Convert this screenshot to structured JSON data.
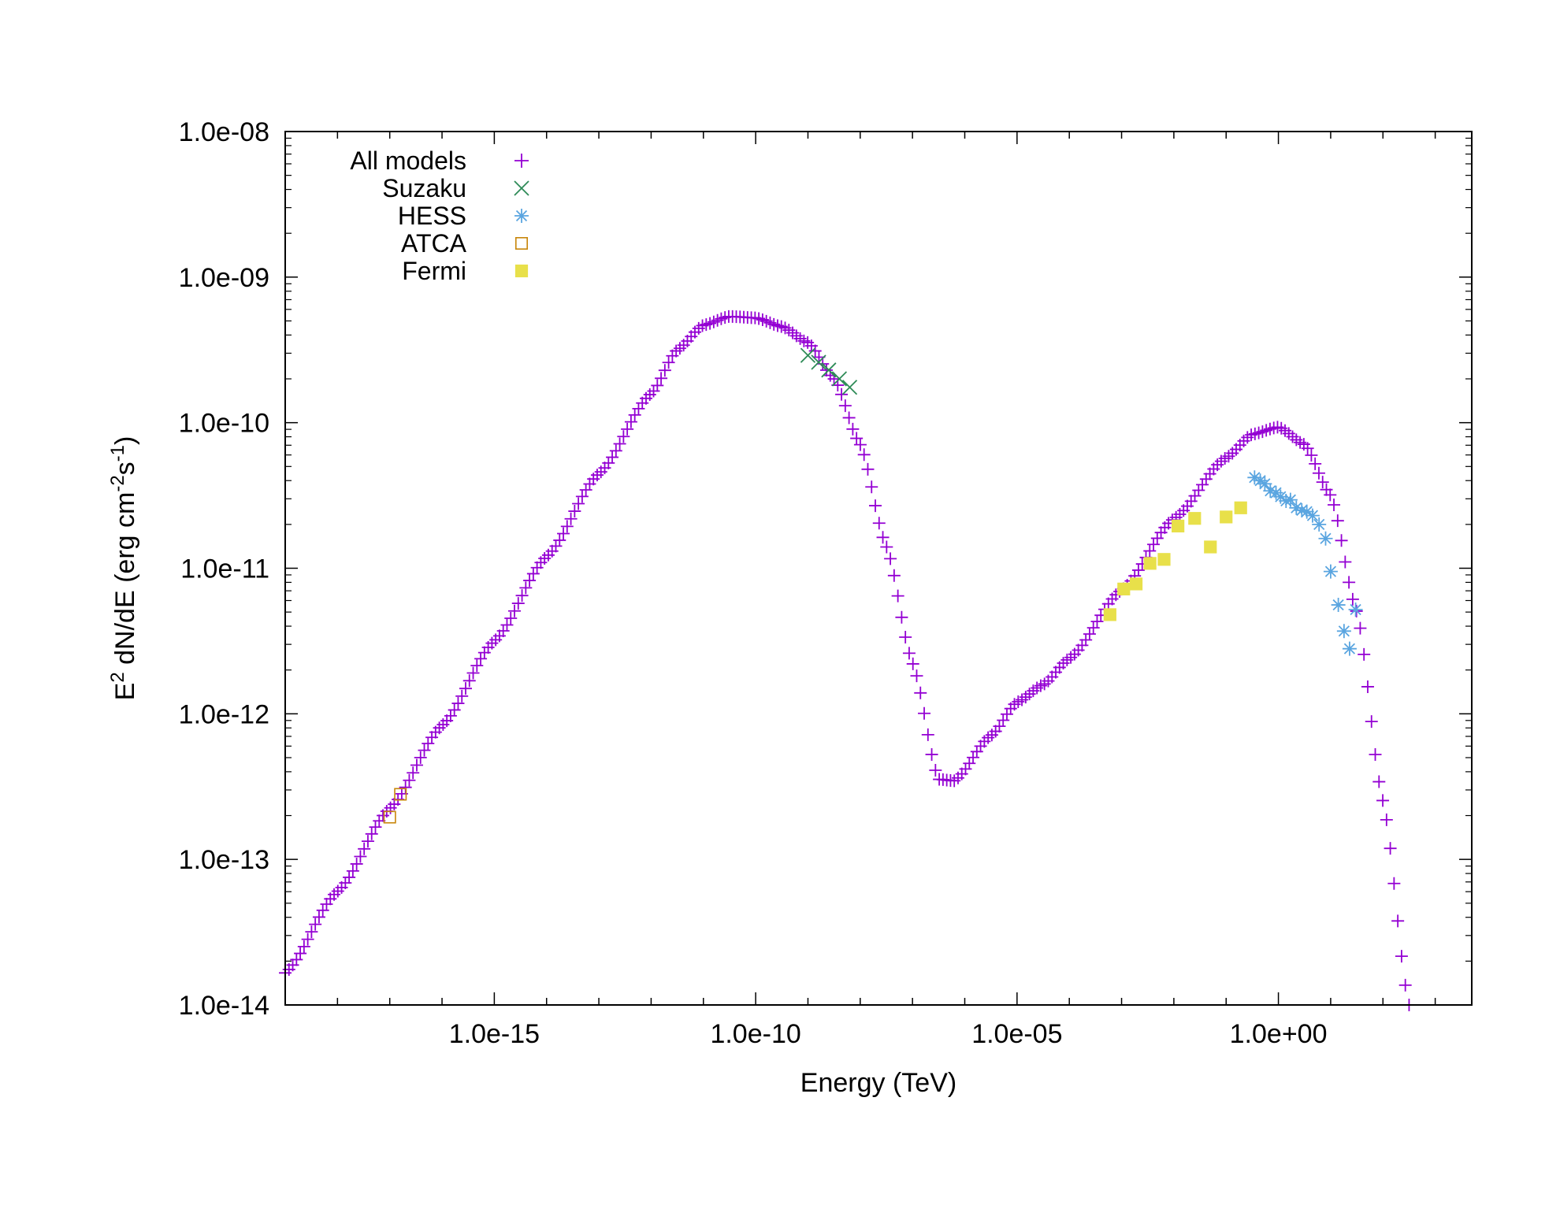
{
  "chart_data": {
    "type": "scatter",
    "title": "",
    "xlabel": "Energy (TeV)",
    "ylabel": {
      "text": "E",
      "sup1": "2",
      "mid1": " dN/dE (erg cm",
      "sup2": "-2",
      "mid2": "s",
      "sup3": "-1",
      "end": ")"
    },
    "xscale": "log",
    "yscale": "log",
    "xlim": [
      1e-19,
      5000.0
    ],
    "ylim": [
      1e-14,
      1e-08
    ],
    "x_ticks": [
      {
        "value": 1e-15,
        "label": "1.0e-15"
      },
      {
        "value": 1e-10,
        "label": "1.0e-10"
      },
      {
        "value": 1e-05,
        "label": "1.0e-05"
      },
      {
        "value": 1,
        "label": "1.0e+00"
      }
    ],
    "y_ticks": [
      {
        "value": 1e-08,
        "label": "1.0e-08"
      },
      {
        "value": 1e-09,
        "label": "1.0e-09"
      },
      {
        "value": 1e-10,
        "label": "1.0e-10"
      },
      {
        "value": 1e-11,
        "label": "1.0e-11"
      },
      {
        "value": 1e-12,
        "label": "1.0e-12"
      },
      {
        "value": 1e-13,
        "label": "1.0e-13"
      },
      {
        "value": 1e-14,
        "label": "1.0e-14"
      }
    ],
    "grid": false,
    "legend_position": "top-left",
    "series": [
      {
        "name": "All models",
        "marker": "plus",
        "color": "#9400d3",
        "curve_knots": [
          [
            -19.0,
            -13.78
          ],
          [
            -18.0,
            -13.22
          ],
          [
            -17.0,
            -12.65
          ],
          [
            -16.0,
            -12.08
          ],
          [
            -15.0,
            -11.5
          ],
          [
            -14.0,
            -10.92
          ],
          [
            -13.0,
            -10.35
          ],
          [
            -12.0,
            -9.8
          ],
          [
            -11.5,
            -9.5
          ],
          [
            -11.0,
            -9.33
          ],
          [
            -10.5,
            -9.27
          ],
          [
            -10.0,
            -9.28
          ],
          [
            -9.5,
            -9.34
          ],
          [
            -9.0,
            -9.45
          ],
          [
            -8.5,
            -9.7
          ],
          [
            -8.0,
            -10.15
          ],
          [
            -7.5,
            -10.85
          ],
          [
            -7.0,
            -11.65
          ],
          [
            -6.5,
            -12.45
          ],
          [
            -6.2,
            -12.46
          ],
          [
            -5.5,
            -12.15
          ],
          [
            -5.0,
            -11.92
          ],
          [
            -4.5,
            -11.8
          ],
          [
            -4.0,
            -11.62
          ],
          [
            -3.0,
            -11.15
          ],
          [
            -2.0,
            -10.66
          ],
          [
            -1.0,
            -10.24
          ],
          [
            -0.5,
            -10.08
          ],
          [
            0.0,
            -10.03
          ],
          [
            0.5,
            -10.15
          ],
          [
            1.0,
            -10.5
          ],
          [
            1.5,
            -11.3
          ],
          [
            2.0,
            -12.6
          ],
          [
            2.5,
            -14.0
          ]
        ],
        "x_range": [
          -19.0,
          2.5
        ],
        "n_points": 300
      },
      {
        "name": "Suzaku",
        "marker": "cross",
        "color": "#2e8b57",
        "x": [
          1e-09,
          1.6e-09,
          2.5e-09,
          4e-09,
          6.3e-09
        ],
        "y": [
          2.9e-10,
          2.6e-10,
          2.3e-10,
          2e-10,
          1.75e-10
        ]
      },
      {
        "name": "HESS",
        "marker": "star",
        "color": "#5aa5e0",
        "x": [
          0.35,
          0.45,
          0.55,
          0.7,
          0.9,
          1.1,
          1.4,
          1.7,
          2.2,
          2.8,
          3.5,
          4.5,
          6,
          8,
          10,
          14,
          18,
          23,
          30
        ],
        "y": [
          4.2e-11,
          4e-11,
          3.8e-11,
          3.4e-11,
          3.3e-11,
          3.1e-11,
          2.9e-11,
          2.95e-11,
          2.6e-11,
          2.5e-11,
          2.45e-11,
          2.3e-11,
          2e-11,
          1.6e-11,
          9.5e-12,
          5.6e-12,
          3.7e-12,
          2.8e-12,
          5.2e-12
        ]
      },
      {
        "name": "ATCA",
        "marker": "square-open",
        "color": "#c8860a",
        "x": [
          1e-17,
          1.6e-17
        ],
        "y": [
          1.95e-13,
          2.8e-13
        ]
      },
      {
        "name": "Fermi",
        "marker": "square-filled",
        "color": "#e8e04a",
        "x": [
          0.0006,
          0.0011,
          0.0019,
          0.0035,
          0.0065,
          0.012,
          0.025,
          0.05,
          0.1,
          0.19
        ],
        "y": [
          4.8e-12,
          7.2e-12,
          7.8e-12,
          1.08e-11,
          1.15e-11,
          1.95e-11,
          2.2e-11,
          1.4e-11,
          2.25e-11,
          2.6e-11
        ]
      }
    ]
  }
}
